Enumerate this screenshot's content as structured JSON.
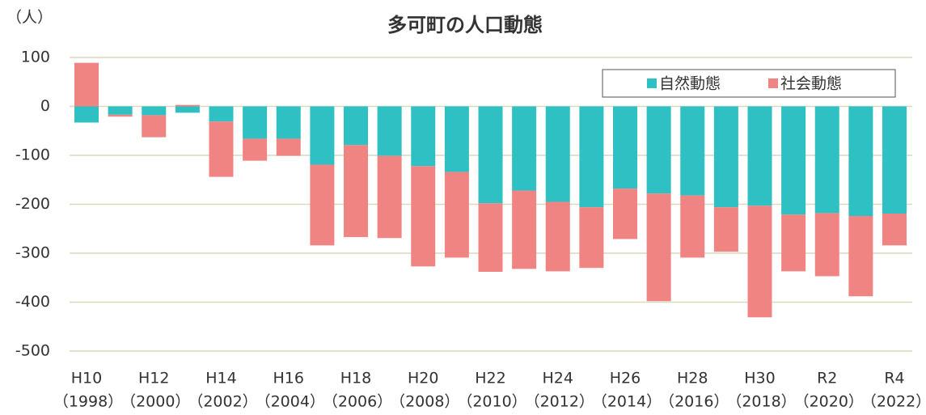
{
  "chart_data": {
    "type": "bar",
    "stacked": true,
    "title": "多可町の人口動態",
    "y_axis_label": "（人）",
    "categories": [
      [
        "H10",
        "（1998）"
      ],
      null,
      [
        "H12",
        "（2000）"
      ],
      null,
      [
        "H14",
        "（2002）"
      ],
      null,
      [
        "H16",
        "（2004）"
      ],
      null,
      [
        "H18",
        "（2006）"
      ],
      null,
      [
        "H20",
        "（2008）"
      ],
      null,
      [
        "H22",
        "（2010）"
      ],
      null,
      [
        "H24",
        "（2012）"
      ],
      null,
      [
        "H26",
        "（2014）"
      ],
      null,
      [
        "H28",
        "（2016）"
      ],
      null,
      [
        "H30",
        "（2018）"
      ],
      null,
      [
        "R2",
        "（2020）"
      ],
      null,
      [
        "R4",
        "（2022）"
      ]
    ],
    "series": [
      {
        "name": "自然動態",
        "color": "#2fc0c4",
        "values": [
          -33,
          -17,
          -18,
          -13,
          -31,
          -66,
          -66,
          -119,
          -79,
          -101,
          -122,
          -134,
          -198,
          -172,
          -195,
          -206,
          -168,
          -178,
          -182,
          -206,
          -203,
          -221,
          -218,
          -224,
          -219
        ]
      },
      {
        "name": "社会動態",
        "color": "#f08482",
        "values": [
          89,
          -4,
          -45,
          3,
          -113,
          -45,
          -35,
          -165,
          -188,
          -168,
          -205,
          -175,
          -140,
          -160,
          -142,
          -124,
          -103,
          -220,
          -127,
          -91,
          -228,
          -116,
          -129,
          -164,
          -65
        ]
      }
    ],
    "ylim": [
      -500,
      100
    ],
    "yticks": [
      100,
      0,
      -100,
      -200,
      -300,
      -400,
      -500
    ],
    "grid": true,
    "legend": "top-right"
  }
}
